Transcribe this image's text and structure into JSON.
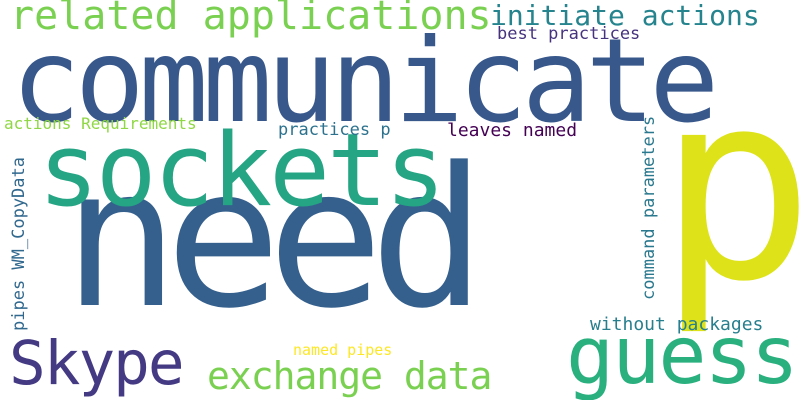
{
  "words": [
    {
      "text": "need",
      "color": "#35608d"
    },
    {
      "text": "communicate",
      "color": "#38588c"
    },
    {
      "text": "p",
      "color": "#dde318"
    },
    {
      "text": "sockets",
      "color": "#25a584"
    },
    {
      "text": "guess",
      "color": "#2ab07f"
    },
    {
      "text": "Skype",
      "color": "#443a83"
    },
    {
      "text": "related applications",
      "color": "#7ad151"
    },
    {
      "text": "initiate actions",
      "color": "#25848e"
    },
    {
      "text": "exchange data",
      "color": "#7ad151"
    },
    {
      "text": "best practices",
      "color": "#46337e"
    },
    {
      "text": "actions Requirements",
      "color": "#8fd744"
    },
    {
      "text": "practices p",
      "color": "#2c728e"
    },
    {
      "text": "leaves named",
      "color": "#440154"
    },
    {
      "text": "without packages",
      "color": "#277f8e"
    },
    {
      "text": "named pipes",
      "color": "#fde725"
    },
    {
      "text": "pipes WM_CopyData",
      "color": "#31688e"
    },
    {
      "text": "command parameters",
      "color": "#2a788e"
    }
  ]
}
